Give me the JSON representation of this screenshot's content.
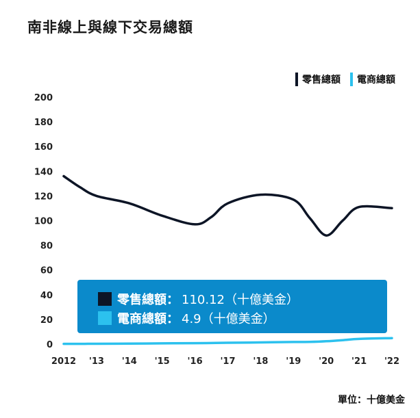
{
  "title": "南非線上與線下交易總額",
  "unit": "單位：十億美金",
  "colors": {
    "retail": "#0d1526",
    "ecommerce": "#2cc1ee",
    "tooltip_bg": "#0b8acb"
  },
  "legend": [
    {
      "label": "零售總額",
      "color": "#0d1526"
    },
    {
      "label": "電商總額",
      "color": "#2cc1ee"
    }
  ],
  "tooltip": {
    "rows": [
      {
        "label": "零售總額：",
        "value": "110.12（十億美金）",
        "color": "#0d1526"
      },
      {
        "label": "電商總額：",
        "value": "4.9（十億美金）",
        "color": "#2cc1ee"
      }
    ]
  },
  "chart_data": {
    "type": "line",
    "x": [
      2012,
      2012.5,
      2013,
      2014,
      2015,
      2016,
      2016.5,
      2017,
      2018,
      2019,
      2019.5,
      2020,
      2020.5,
      2021,
      2022
    ],
    "x_tick_labels": [
      "2012",
      "'13",
      "'14",
      "'15",
      "'16",
      "'17",
      "'18",
      "'19",
      "'20",
      "'21",
      "'22"
    ],
    "series": [
      {
        "name": "零售總額",
        "values": [
          136,
          127,
          120,
          114,
          104,
          97,
          103,
          114,
          121,
          117,
          102,
          88,
          100,
          111,
          110.12
        ]
      },
      {
        "name": "電商總額",
        "values": [
          0.2,
          0.2,
          0.3,
          0.4,
          0.6,
          0.8,
          0.9,
          1.1,
          1.4,
          1.7,
          1.8,
          2.3,
          3.2,
          4.2,
          4.9
        ]
      }
    ],
    "ylim": [
      0,
      200
    ],
    "y_ticks": [
      0,
      20,
      40,
      60,
      80,
      100,
      120,
      140,
      160,
      180,
      200
    ],
    "grid": false,
    "legend_position": "top-right"
  }
}
